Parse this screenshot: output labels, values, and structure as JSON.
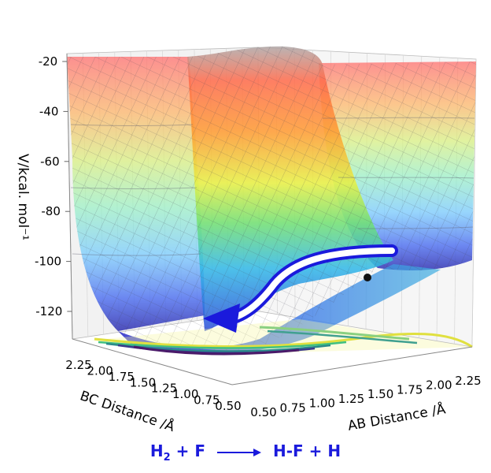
{
  "chart_data": {
    "type": "surface3d",
    "title": "",
    "zlabel": "V/kcal. mol⁻¹",
    "xlabel": "AB Distance /Å",
    "ylabel": "BC Distance /Å",
    "z_ticks": [
      "-20",
      "-40",
      "-60",
      "-80",
      "-100",
      "-120"
    ],
    "x_ticks": [
      "0.50",
      "0.75",
      "1.00",
      "1.25",
      "1.50",
      "1.75",
      "2.00",
      "2.25"
    ],
    "y_ticks": [
      "2.25",
      "2.00",
      "1.75",
      "1.50",
      "1.25",
      "1.00",
      "0.75",
      "0.50"
    ],
    "zlim": [
      -135,
      -18
    ],
    "xlim": [
      0.5,
      2.4
    ],
    "ylim": [
      0.5,
      2.4
    ],
    "colormap": "jet",
    "contour_projection": true,
    "reaction_path": "arrow from H2 + F valley to H-F + H valley"
  },
  "equation": {
    "reactant": "H",
    "reactant_sub": "2",
    "reactant_rest": " + F",
    "product": "H-F + H"
  }
}
